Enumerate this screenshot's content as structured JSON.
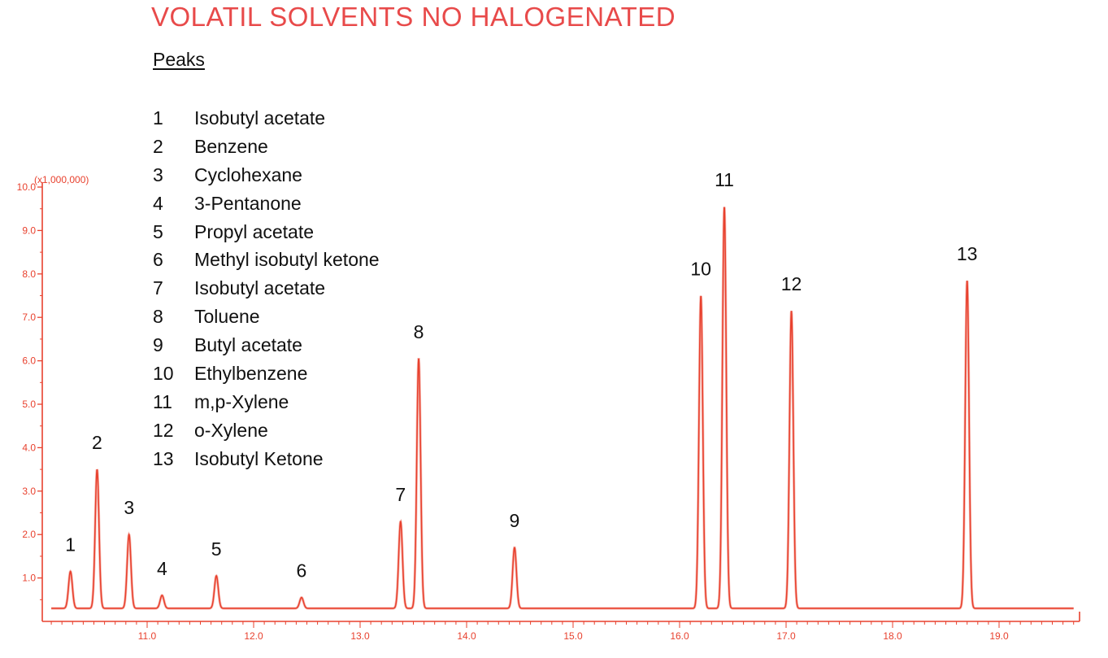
{
  "colors": {
    "trace": "#e8412e",
    "title": "#e84a4a",
    "text": "#111111"
  },
  "title": "VOLATIL SOLVENTS NO HALOGENATED",
  "legend_heading": "Peaks",
  "peaks": [
    {
      "num": "1",
      "name": "Isobutyl acetate"
    },
    {
      "num": "2",
      "name": "Benzene"
    },
    {
      "num": "3",
      "name": "Cyclohexane"
    },
    {
      "num": "4",
      "name": "3-Pentanone"
    },
    {
      "num": "5",
      "name": "Propyl acetate"
    },
    {
      "num": "6",
      "name": "Methyl isobutyl ketone"
    },
    {
      "num": "7",
      "name": "Isobutyl acetate"
    },
    {
      "num": "8",
      "name": "Toluene"
    },
    {
      "num": "9",
      "name": "Butyl acetate"
    },
    {
      "num": "10",
      "name": "Ethylbenzene"
    },
    {
      "num": "11",
      "name": "m,p-Xylene"
    },
    {
      "num": "12",
      "name": "o-Xylene"
    },
    {
      "num": "13",
      "name": "Isobutyl Ketone"
    }
  ],
  "chart_data": {
    "type": "line",
    "title": "VOLATIL SOLVENTS NO HALOGENATED",
    "y_multiplier_label": "(x1,000,000)",
    "xlabel": "",
    "ylabel": "",
    "xlim": [
      10.1,
      19.7
    ],
    "ylim": [
      0,
      10.0
    ],
    "x_ticks": [
      "11.0",
      "12.0",
      "13.0",
      "14.0",
      "15.0",
      "16.0",
      "17.0",
      "18.0",
      "19.0"
    ],
    "y_ticks": [
      "1.0",
      "2.0",
      "3.0",
      "4.0",
      "5.0",
      "6.0",
      "7.0",
      "8.0",
      "9.0",
      "10.0"
    ],
    "grid": false,
    "baseline": 0.3,
    "peaks": [
      {
        "label": "1",
        "rt": 10.28,
        "height": 1.15
      },
      {
        "label": "2",
        "rt": 10.53,
        "height": 3.5
      },
      {
        "label": "3",
        "rt": 10.83,
        "height": 2.0
      },
      {
        "label": "4",
        "rt": 11.14,
        "height": 0.6
      },
      {
        "label": "5",
        "rt": 11.65,
        "height": 1.05
      },
      {
        "label": "6",
        "rt": 12.45,
        "height": 0.55
      },
      {
        "label": "7",
        "rt": 13.38,
        "height": 2.3
      },
      {
        "label": "8",
        "rt": 13.55,
        "height": 6.05
      },
      {
        "label": "9",
        "rt": 14.45,
        "height": 1.7
      },
      {
        "label": "10",
        "rt": 16.2,
        "height": 7.5
      },
      {
        "label": "11",
        "rt": 16.42,
        "height": 9.55
      },
      {
        "label": "12",
        "rt": 17.05,
        "height": 7.15
      },
      {
        "label": "13",
        "rt": 18.7,
        "height": 7.85
      }
    ]
  }
}
